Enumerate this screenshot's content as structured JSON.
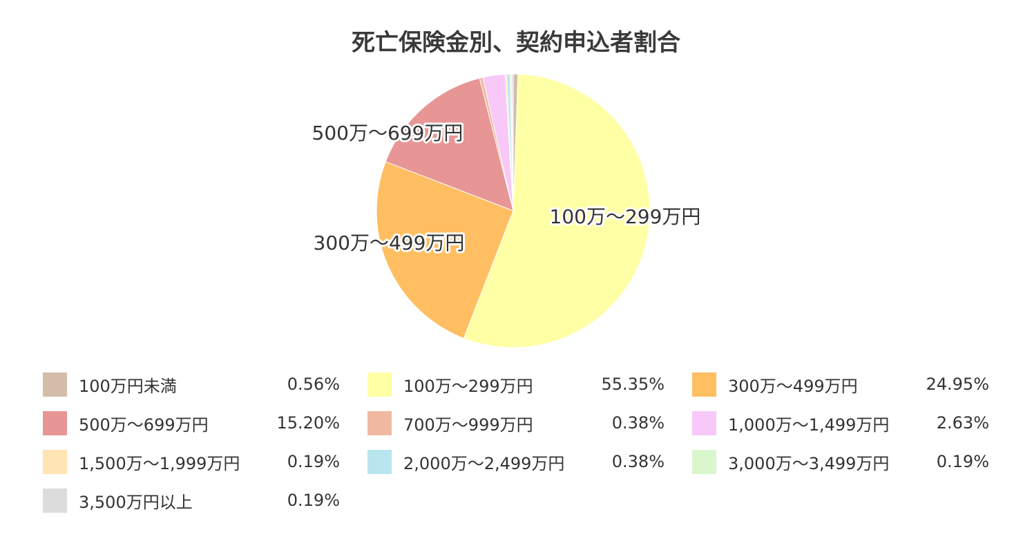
{
  "chart_data": {
    "type": "pie",
    "title": "死亡保険金別、契約申込者割合",
    "unit": "%",
    "slices": [
      {
        "name": "100万円未満",
        "value": 0.56,
        "display": "0.56%",
        "color": "#d3bda9"
      },
      {
        "name": "100万～299万円",
        "value": 55.35,
        "display": "55.35%",
        "color": "#ffffa6",
        "label": "100万～299万円"
      },
      {
        "name": "300万～499万円",
        "value": 24.95,
        "display": "24.95%",
        "color": "#ffbe61",
        "label": "300万～499万円"
      },
      {
        "name": "500万～699万円",
        "value": 15.2,
        "display": "15.20%",
        "color": "#e79595",
        "label": "500万～699万円"
      },
      {
        "name": "700万～999万円",
        "value": 0.38,
        "display": "0.38%",
        "color": "#f1b8a1"
      },
      {
        "name": "1,000万～1,499万円",
        "value": 2.63,
        "display": "2.63%",
        "color": "#f8c8f8"
      },
      {
        "name": "1,500万～1,999万円",
        "value": 0.19,
        "display": "0.19%",
        "color": "#ffe5b3"
      },
      {
        "name": "2,000万～2,499万円",
        "value": 0.38,
        "display": "0.38%",
        "color": "#b9e5ee"
      },
      {
        "name": "3,000万～3,499万円",
        "value": 0.19,
        "display": "0.19%",
        "color": "#d9f6cc"
      },
      {
        "name": "3,500万円以上",
        "value": 0.19,
        "display": "0.19%",
        "color": "#dcdcdc"
      }
    ],
    "legend_position": "bottom",
    "direction": "clockwise-from-top"
  }
}
